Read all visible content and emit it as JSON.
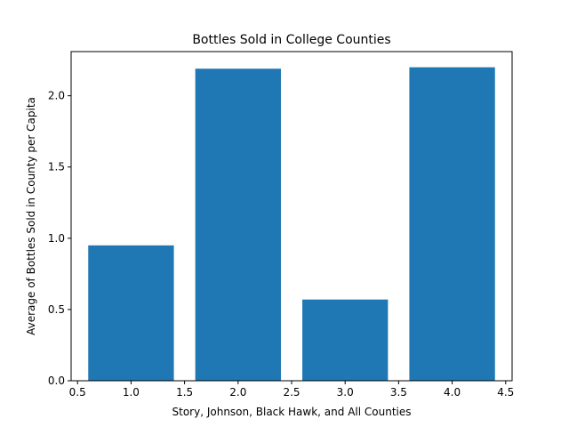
{
  "chart_data": {
    "type": "bar",
    "title": "Bottles Sold in College Counties",
    "xlabel": "Story, Johnson, Black Hawk, and All Counties",
    "ylabel": "Average of Bottles Sold in County per Capita",
    "x": [
      1,
      2,
      3,
      4
    ],
    "values": [
      0.95,
      2.19,
      0.57,
      2.2
    ],
    "bar_width": 0.8,
    "xlim": [
      0.44,
      4.56
    ],
    "ylim": [
      0,
      2.31
    ],
    "xticks": [
      0.5,
      1.0,
      1.5,
      2.0,
      2.5,
      3.0,
      3.5,
      4.0,
      4.5
    ],
    "xtick_labels": [
      "0.5",
      "1.0",
      "1.5",
      "2.0",
      "2.5",
      "3.0",
      "3.5",
      "4.0",
      "4.5"
    ],
    "yticks": [
      0.0,
      0.5,
      1.0,
      1.5,
      2.0
    ],
    "ytick_labels": [
      "0.0",
      "0.5",
      "1.0",
      "1.5",
      "2.0"
    ],
    "grid": false,
    "bar_color": "#1f77b4"
  }
}
